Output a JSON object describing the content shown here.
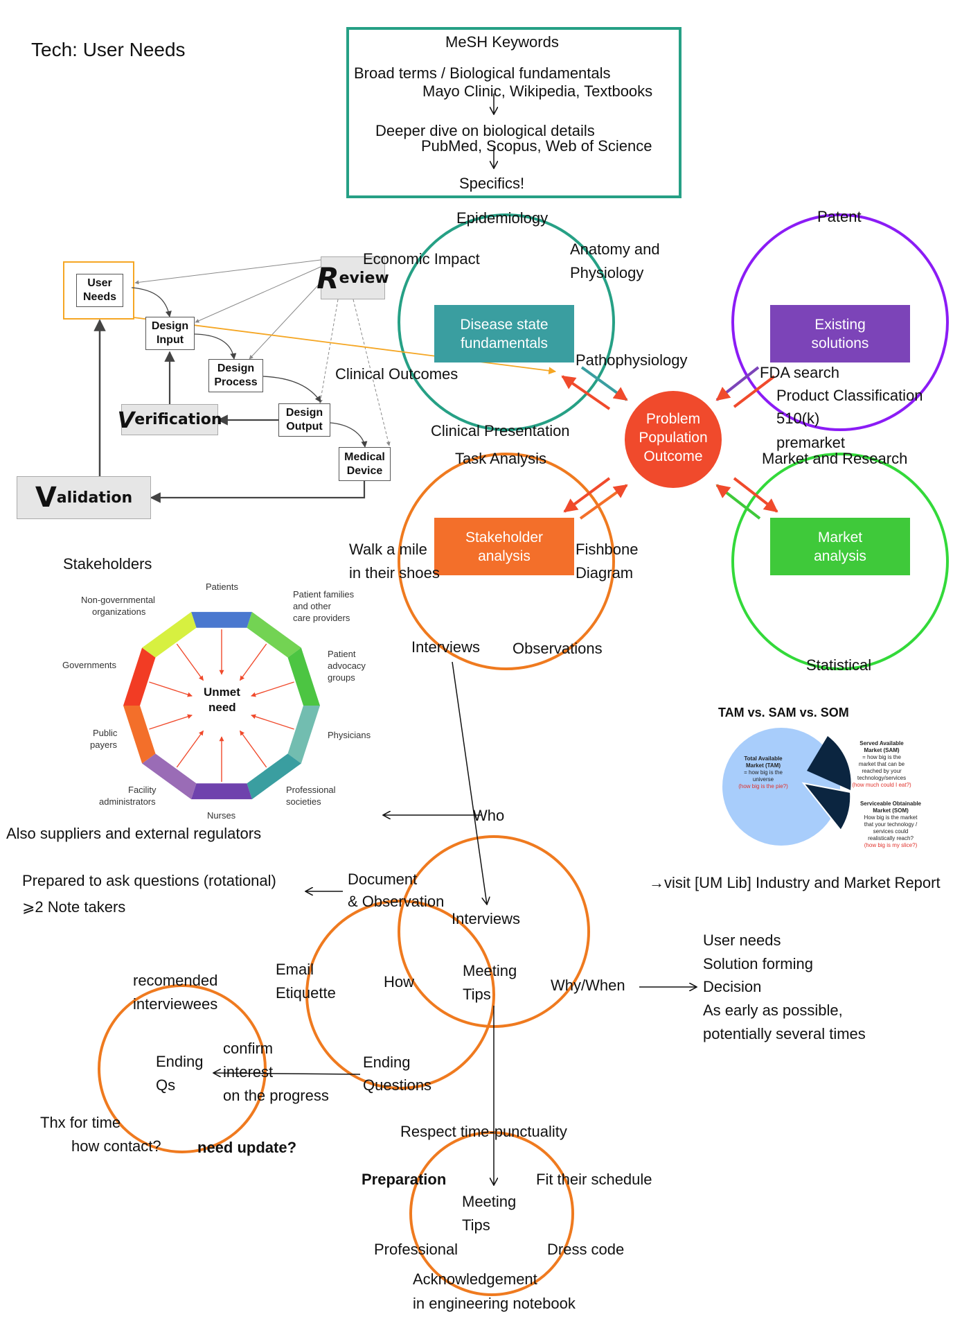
{
  "title": "Tech: User Needs",
  "mesh": {
    "heading": "MeSH Keywords",
    "broad": "Broad terms / Biological fundamentals",
    "broad_sources": "Mayo Clinic, Wikipedia, Textbooks",
    "deeper": "Deeper dive on biological details",
    "deeper_sources": "PubMed, Scopus, Web of Science",
    "specifics": "Specifics!"
  },
  "flow": {
    "user_needs": "User Needs",
    "review_initial": "R",
    "review_rest": "eview",
    "design_input": "Design Input",
    "design_process": "Design Process",
    "design_output": "Design Output",
    "medical_device": "Medical Device",
    "verification_initial": "V",
    "verification_rest": "erification",
    "validation_initial": "V",
    "validation_rest": "alidation"
  },
  "disease": {
    "label": "Disease state fundamentals",
    "epidemiology": "Epidemiology",
    "economic_impact": "Economic Impact",
    "anatomy": "Anatomy and",
    "physiology": "Physiology",
    "pathophysiology": "Pathophysiology",
    "clinical_outcomes": "Clinical Outcomes",
    "clinical_presentation": "Clinical Presentation"
  },
  "existing": {
    "label": "Existing solutions",
    "patent": "Patent",
    "fda_search": "FDA search",
    "product_classification": "Product Classification",
    "k510": "510(k)",
    "premarket": "premarket"
  },
  "problem": {
    "line1": "Problem",
    "line2": "Population",
    "line3": "Outcome"
  },
  "market": {
    "label": "Market analysis",
    "research": "Market and Research",
    "statistical": "Statistical",
    "visit": "→visit [UM Lib] Industry and Market Report"
  },
  "stakeholder": {
    "label": "Stakeholder analysis",
    "task_analysis": "Task Analysis",
    "walk1": "Walk a mile",
    "walk2": "in their shoes",
    "fishbone1": "Fishbone",
    "fishbone2": "Diagram",
    "interviews": "Interviews",
    "observations": "Observations"
  },
  "stakeholders_fig": {
    "title": "Stakeholders",
    "center1": "Unmet",
    "center2": "need",
    "patients": "Patients",
    "families1": "Patient families",
    "families2": "and other",
    "families3": "care providers",
    "advocacy1": "Patient",
    "advocacy2": "advocacy",
    "advocacy3": "groups",
    "physicians": "Physicians",
    "professional1": "Professional",
    "professional2": "societies",
    "nurses": "Nurses",
    "facility1": "Facility",
    "facility2": "administrators",
    "payers1": "Public",
    "payers2": "payers",
    "governments": "Governments",
    "ngo1": "Non-governmental",
    "ngo2": "organizations",
    "also": "Also suppliers and external regulators"
  },
  "tam": {
    "title": "TAM vs. SAM vs. SOM",
    "tam1": "Total Available",
    "tam2": "Market (TAM)",
    "tam3": "= how big is the",
    "tam4": "universe",
    "tam5": "(how big is the pie?)",
    "sam1": "Served Available",
    "sam2": "Market (SAM)",
    "sam3": "= how big is the",
    "sam4": "market that can be",
    "sam5": "reached by your",
    "sam6": "technology/services",
    "sam7": "(how much could I eat?)",
    "som1": "Serviceable Obtainable",
    "som2": "Market (SOM)",
    "som3": "How big is the market",
    "som4": "that your technology /",
    "som5": "services could",
    "som6": "realistically reach?",
    "som7": "(how big is my slice?)"
  },
  "interviews": {
    "who": "Who",
    "how": "How",
    "interviews": "Interviews",
    "doc1": "Document",
    "doc2": "& Observation",
    "prepared": "Prepared to ask questions (rotational)",
    "note_takers": "⩾2 Note takers",
    "email1": "Email",
    "email2": "Etiquette",
    "meeting1": "Meeting",
    "meeting2": "Tips",
    "why_when": "Why/When",
    "user_needs": "User needs",
    "solution_forming": "Solution forming",
    "decision": "Decision",
    "early": "As early as possible,",
    "several": "potentially several times",
    "ending1": "Ending",
    "ending2": "Questions"
  },
  "ending_qs": {
    "recommended1": "recomended",
    "recommended2": "interviewees",
    "ending": "Ending",
    "qs": "Qs",
    "confirm1": "confirm",
    "confirm2": "interest",
    "confirm3": "on the progress",
    "thx": "Thx for time",
    "contact": "how contact?",
    "update": "need update?"
  },
  "meeting_tips": {
    "respect": "Respect time-punctuality",
    "preparation": "Preparation",
    "fit": "Fit their schedule",
    "meeting": "Meeting",
    "tips": "Tips",
    "professional": "Professional",
    "dress": "Dress code",
    "ack1": "Acknowledgement",
    "ack2": "in engineering notebook"
  },
  "colors": {
    "teal": "#26a085",
    "teal_box": "#3a9ea0",
    "purple": "#8b1cf5",
    "purple_box": "#7c44b8",
    "green": "#33d93a",
    "green_box": "#3fc93a",
    "orange": "#ef7a1f",
    "orange_box": "#f36f2a",
    "red": "#f04a2c",
    "gray_box": "#e6e6e6"
  }
}
